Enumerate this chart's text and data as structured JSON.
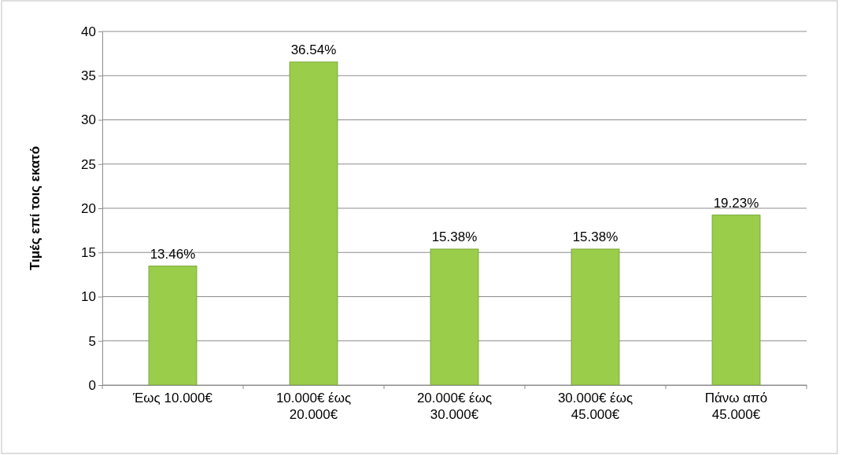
{
  "chart_data": {
    "type": "bar",
    "ylabel": "Τιμές επί τοις εκατό",
    "categories": [
      "Έως 10.000€",
      "10.000€ έως 20.000€",
      "20.000€ έως 30.000€",
      "30.000€ έως 45.000€",
      "Πάνω από 45.000€"
    ],
    "values": [
      13.46,
      36.54,
      15.38,
      15.38,
      19.23
    ],
    "value_labels": [
      "13.46%",
      "36.54%",
      "15.38%",
      "15.38%",
      "19.23%"
    ],
    "color": "#9acd4a",
    "ylim": [
      0,
      40
    ],
    "yticks": [
      0,
      5,
      10,
      15,
      20,
      25,
      30,
      35,
      40
    ],
    "grid": "y"
  }
}
